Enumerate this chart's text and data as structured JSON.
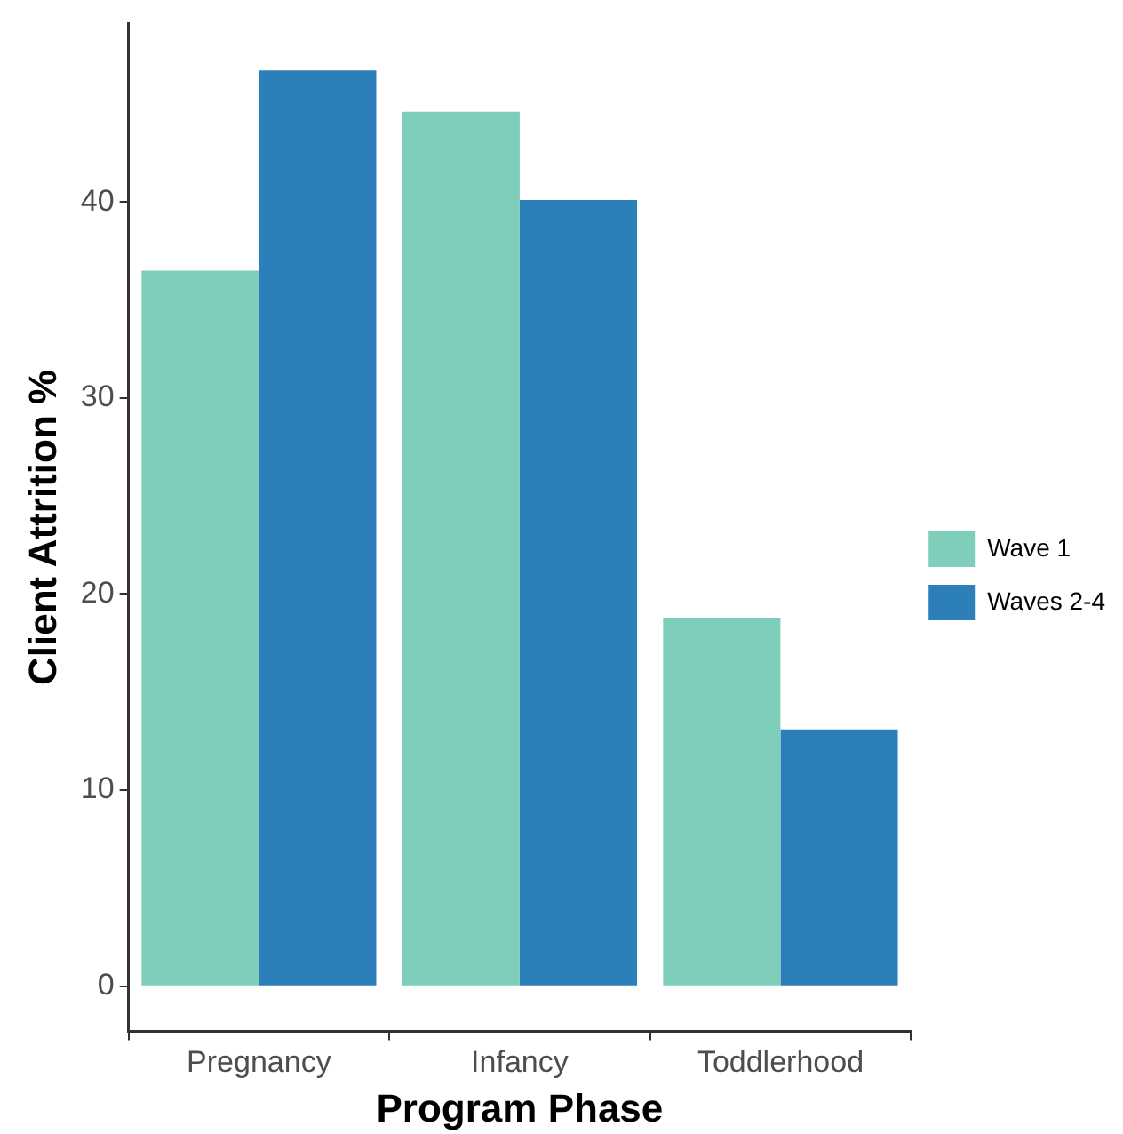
{
  "chart_data": {
    "type": "bar",
    "xlabel": "Program Phase",
    "ylabel": "Client Attrition %",
    "categories": [
      "Pregnancy",
      "Infancy",
      "Toddlerhood"
    ],
    "series": [
      {
        "name": "Wave 1",
        "color": "#7fcdbb",
        "values": [
          36.5,
          44.6,
          18.8
        ]
      },
      {
        "name": "Waves 2-4",
        "color": "#2c7fb8",
        "values": [
          46.7,
          40.1,
          13.1
        ]
      }
    ],
    "ylim": [
      -2.3,
      49.1
    ],
    "yticks": [
      0,
      10,
      20,
      30,
      40
    ],
    "grid": false,
    "legend": "right"
  }
}
